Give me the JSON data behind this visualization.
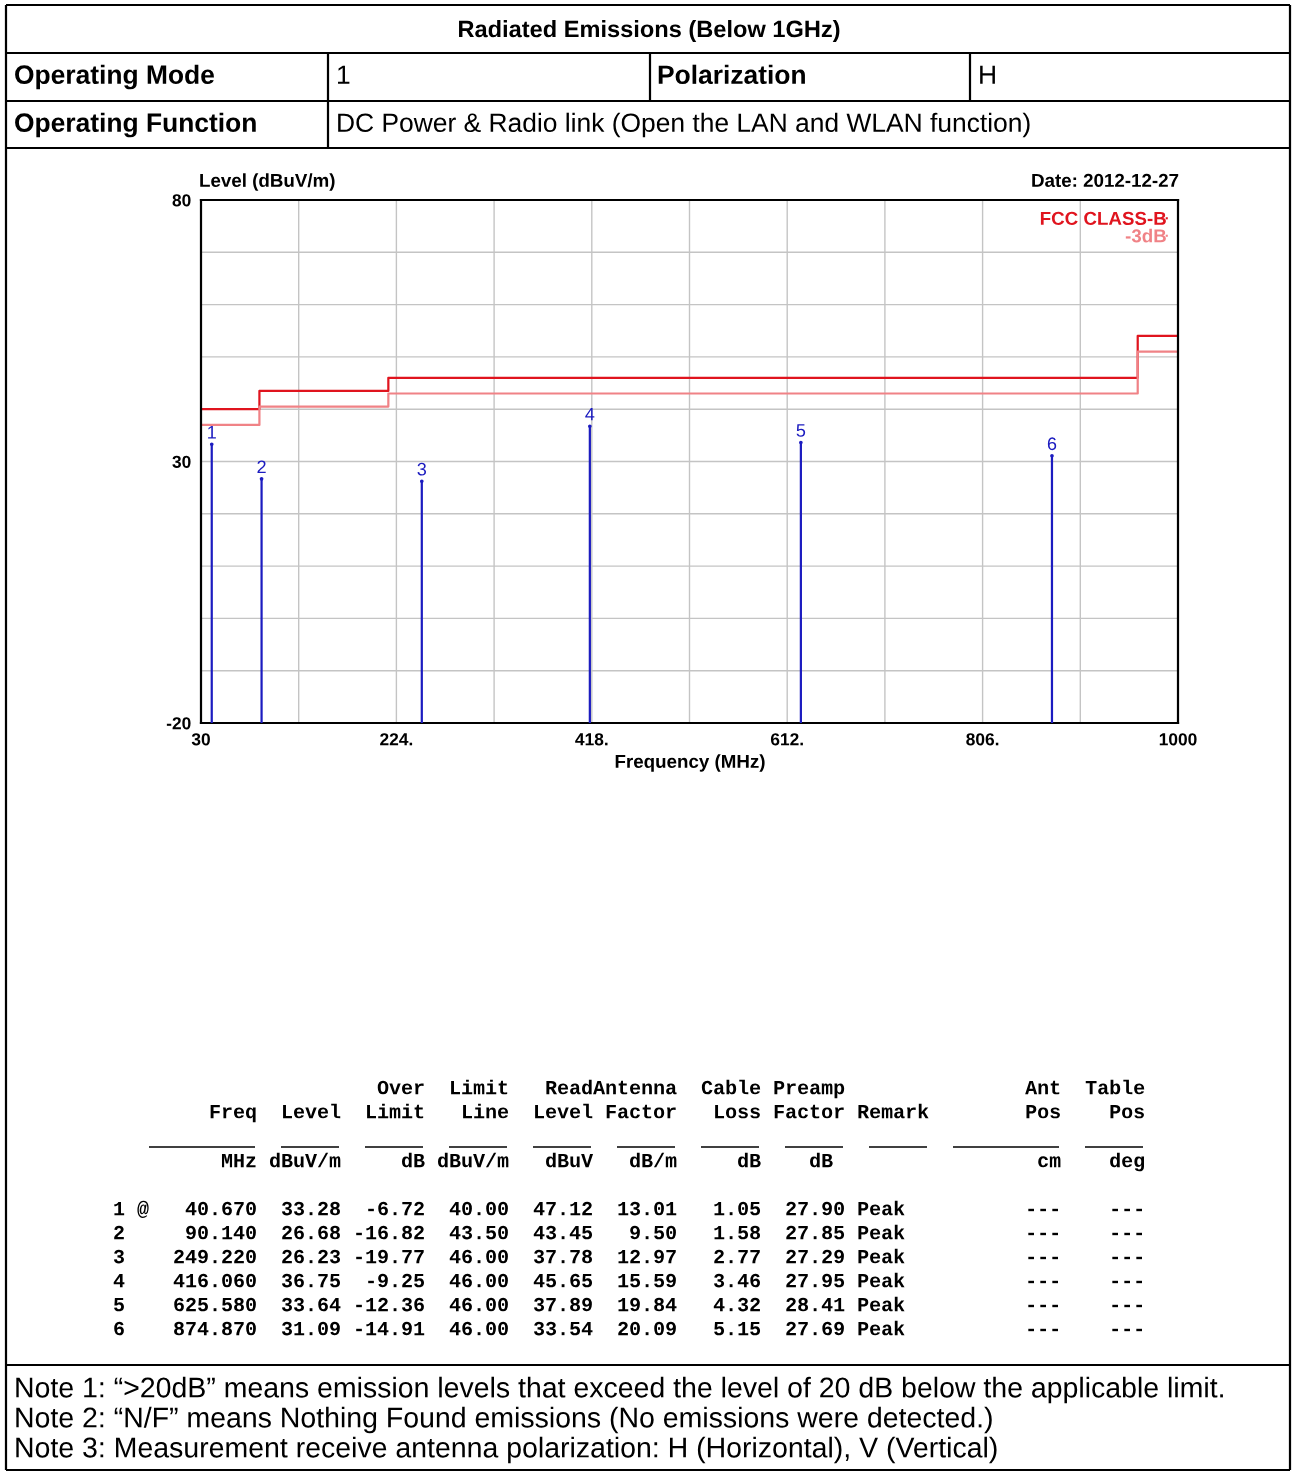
{
  "chart_data": {
    "type": "lollipop",
    "title": "Radiated Emissions (Below 1GHz)",
    "xlabel": "Frequency (MHz)",
    "ylabel": "Level (dBuV/m)",
    "xlim": [
      30,
      1000
    ],
    "ylim": [
      -20,
      80
    ],
    "xticks": [
      30,
      {
        "value": 127,
        "label": null
      },
      {
        "value": 224,
        "label": "224."
      },
      {
        "value": 321,
        "label": null
      },
      {
        "value": 418,
        "label": "418."
      },
      {
        "value": 515,
        "label": null
      },
      {
        "value": 612,
        "label": "612."
      },
      {
        "value": 709,
        "label": null
      },
      {
        "value": 806,
        "label": "806."
      },
      {
        "value": 903,
        "label": null
      },
      1000
    ],
    "yticks": [
      -20,
      {
        "value": -10,
        "label": null
      },
      {
        "value": 0,
        "label": null
      },
      {
        "value": 10,
        "label": null
      },
      {
        "value": 20,
        "label": null
      },
      30,
      {
        "value": 40,
        "label": null
      },
      {
        "value": 50,
        "label": null
      },
      {
        "value": 60,
        "label": null
      },
      {
        "value": 70,
        "label": null
      },
      80
    ],
    "grid": true,
    "legend": "top right",
    "series": [
      {
        "color": "#1c1cc0",
        "x": [
          40.67,
          90.14,
          249.22,
          416.06,
          625.58,
          874.87
        ],
        "values": [
          33.28,
          26.68,
          26.23,
          36.75,
          33.64,
          31.09
        ]
      },
      {
        "name": "FCC CLASS-B",
        "type": "step",
        "color": "#e0141e",
        "x": [
          30,
          88,
          216,
          960,
          1000
        ],
        "values": [
          40,
          43.5,
          46,
          54,
          54
        ]
      },
      {
        "name": "-3dB",
        "type": "step",
        "color": "#f08286",
        "x": [
          30,
          88,
          216,
          960,
          1000
        ],
        "values": [
          37,
          40.5,
          43,
          51,
          51
        ]
      }
    ],
    "annotations": [
      "Operating Mode",
      "1",
      "Polarization",
      "H",
      "Operating Function",
      "DC Power & Radio link (Open the LAN and WLAN function)",
      "Date: 2012-12-27",
      {
        "text": "1",
        "x": 40.67,
        "y": 33.28
      },
      {
        "text": "2",
        "x": 90.14,
        "y": 26.68
      },
      {
        "text": "3",
        "x": 249.22,
        "y": 26.23
      },
      {
        "text": "4",
        "x": 416.06,
        "y": 36.75
      },
      {
        "text": "5",
        "x": 625.58,
        "y": 33.64
      },
      {
        "text": "6",
        "x": 874.87,
        "y": 31.09
      },
      "                      Over  Limit   ReadAntenna  Cable Preamp               Ant  Table",
      "        Freq  Level  Limit   Line  Level Factor   Loss Factor Remark        Pos    Pos",
      "         MHz dBuV/m     dB dBuV/m   dBuV   dB/m     dB    dB                 cm    deg",
      "1 @   40.670  33.28  -6.72  40.00  47.12  13.01   1.05  27.90 Peak          ---    ---",
      "2     90.140  26.68 -16.82  43.50  43.45   9.50   1.58  27.85 Peak          ---    ---",
      "3    249.220  26.23 -19.77  46.00  37.78  12.97   2.77  27.29 Peak          ---    ---",
      "4    416.060  36.75  -9.25  46.00  45.65  15.59   3.46  27.95 Peak          ---    ---",
      "5    625.580  33.64 -12.36  46.00  37.89  19.84   4.32  28.41 Peak          ---    ---",
      "6    874.870  31.09 -14.91  46.00  33.54  20.09   5.15  27.69 Peak          ---    ---",
      "Note 1: “>20dB” means emission levels that exceed the level of 20 dB below the applicable limit.",
      "Note 2: “N/F” means Nothing Found emissions (No emissions were detected.)",
      "Note 3: Measurement receive antenna polarization: H (Horizontal), V (Vertical)"
    ]
  }
}
